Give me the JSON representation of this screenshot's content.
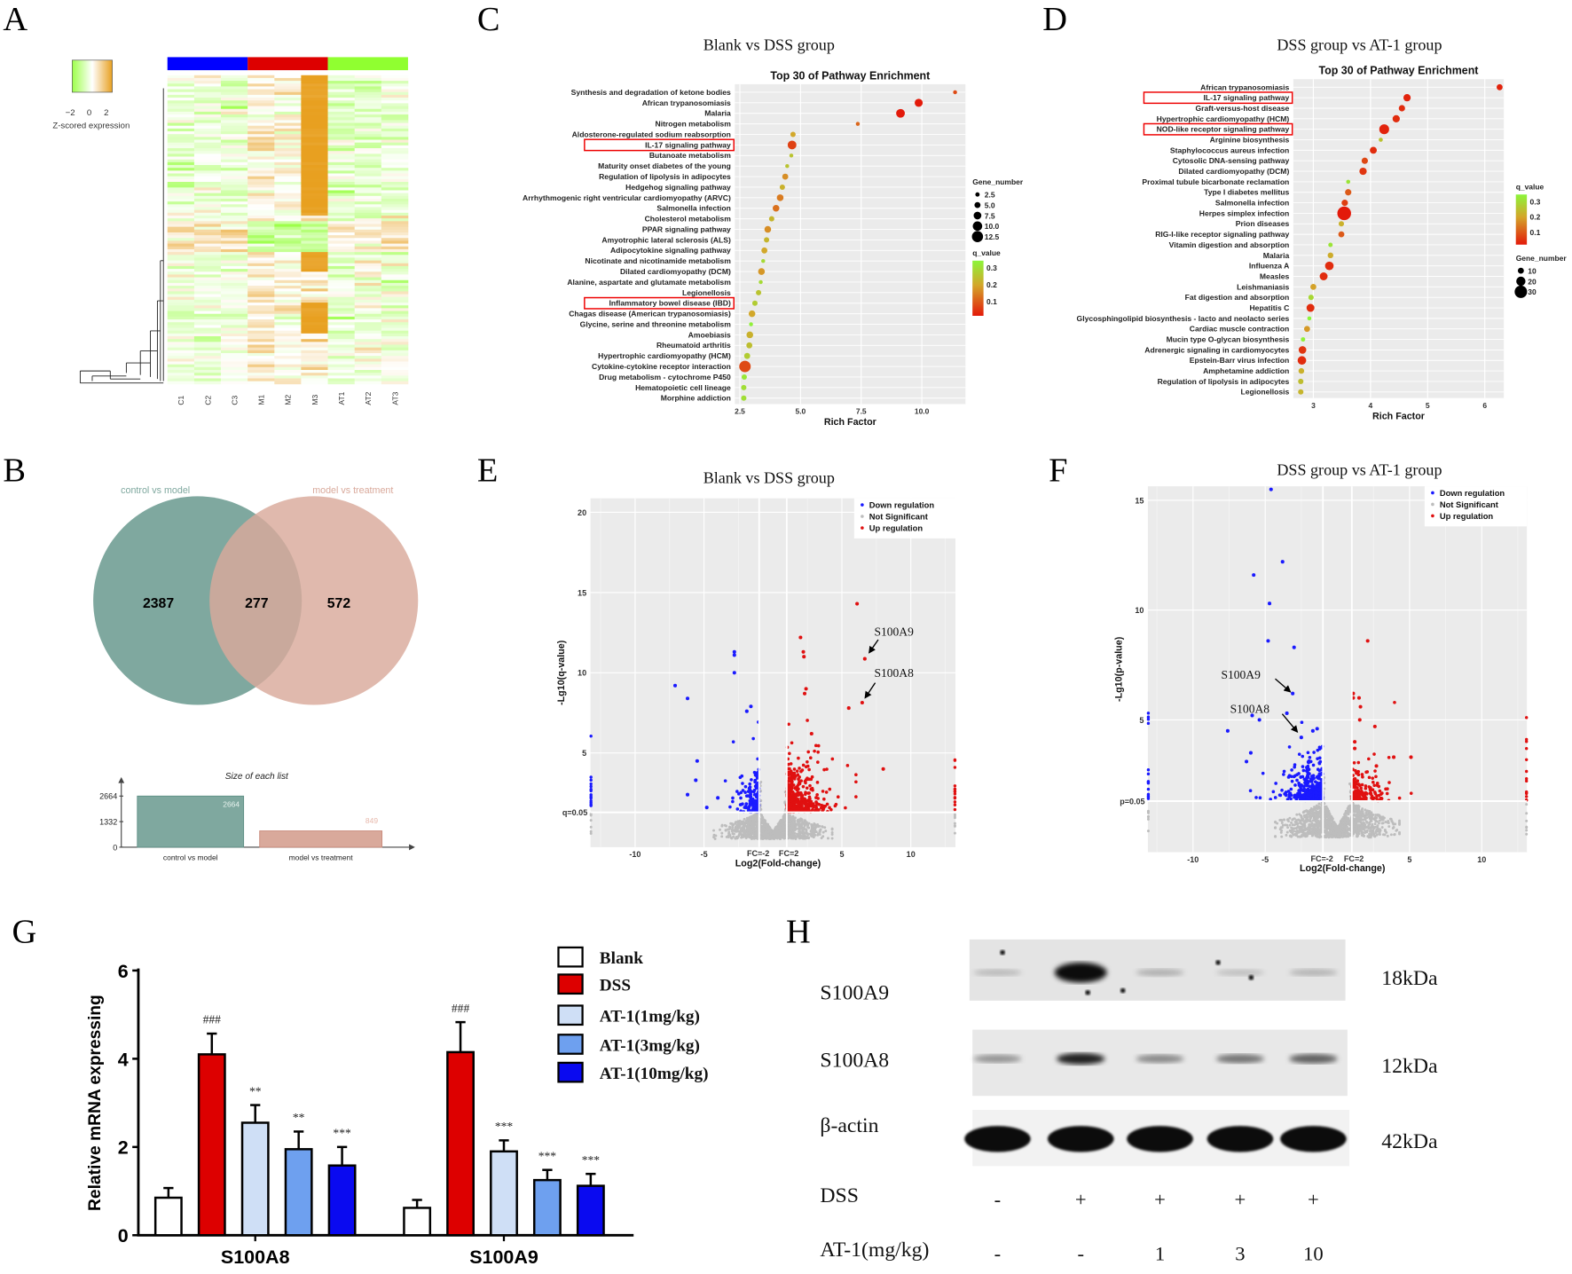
{
  "panel_letters": [
    "A",
    "B",
    "C",
    "D",
    "E",
    "F",
    "G",
    "H"
  ],
  "chart_data": [
    {
      "panel": "A",
      "type": "heatmap",
      "columns": [
        "C1",
        "C2",
        "C3",
        "M1",
        "M2",
        "M3",
        "AT1",
        "AT2",
        "AT3"
      ],
      "group_colors": [
        "#0000ff",
        "#dd0000",
        "#90ff30"
      ],
      "legend_title": "Z-scored expression",
      "legend_ticks": [
        "−2",
        "0",
        "2"
      ],
      "scale_colors": {
        "low": "#9dff4a",
        "mid": "#ffffff",
        "high": "#e8a020"
      }
    },
    {
      "panel": "B",
      "type": "venn",
      "sets": [
        {
          "name": "control vs model",
          "color": "#7fa89f"
        },
        {
          "name": "model vs treatment",
          "color": "#d9a99b"
        }
      ],
      "regions": {
        "left_only": "2387",
        "intersection": "277",
        "right_only": "572"
      }
    },
    {
      "panel": "B",
      "type": "bar",
      "title": "Size of each list",
      "categories": [
        "control vs model",
        "model vs treatment"
      ],
      "values": [
        2664,
        849
      ],
      "value_labels": [
        "2664",
        "849"
      ],
      "yticks": [
        "0",
        "1332",
        "2664"
      ],
      "ylim": [
        0,
        2664
      ]
    },
    {
      "panel": "C",
      "type": "scatter",
      "figure_title": "Blank vs DSS group",
      "title": "Top 30 of Pathway Enrichment",
      "xlabel": "Rich Factor",
      "xticks": [
        2.5,
        5.0,
        7.5,
        10.0
      ],
      "xtick_labels": [
        "2.5",
        "5.0",
        "7.5",
        "10.0"
      ],
      "xlim": [
        2.4,
        11.6
      ],
      "size_legend_title": "Gene_number",
      "size_legend": [
        "2.5",
        "5.0",
        "7.5",
        "10.0",
        "12.5"
      ],
      "color_legend_title": "q_value",
      "color_legend": [
        "0.3",
        "0.2",
        "0.1"
      ],
      "highlighted": [
        "IL-17 signaling pathway",
        "Inflammatory bowel disease (IBD)"
      ],
      "pathways": [
        {
          "name": "Synthesis and degradation of ketone bodies",
          "rich": 11.37,
          "genes": 2,
          "q": 0.06
        },
        {
          "name": "African trypanosomiasis",
          "rich": 9.87,
          "genes": 8,
          "q": 0.01
        },
        {
          "name": "Malaria",
          "rich": 9.12,
          "genes": 9,
          "q": 0.01
        },
        {
          "name": "Nitrogen metabolism",
          "rich": 7.36,
          "genes": 2,
          "q": 0.09
        },
        {
          "name": "Aldosterone-regulated sodium reabsorption",
          "rich": 4.69,
          "genes": 4,
          "q": 0.16
        },
        {
          "name": "IL-17 signaling pathway",
          "rich": 4.65,
          "genes": 9,
          "q": 0.05
        },
        {
          "name": "Butanoate metabolism",
          "rich": 4.62,
          "genes": 2,
          "q": 0.22
        },
        {
          "name": "Maturity onset diabetes of the young",
          "rich": 4.45,
          "genes": 2,
          "q": 0.22
        },
        {
          "name": "Regulation of lipolysis in adipocytes",
          "rich": 4.37,
          "genes": 5,
          "q": 0.13
        },
        {
          "name": "Hedgehog signaling pathway",
          "rich": 4.25,
          "genes": 4,
          "q": 0.18
        },
        {
          "name": "Arrhythmogenic right ventricular cardiomyopathy (ARVC)",
          "rich": 4.16,
          "genes": 6,
          "q": 0.11
        },
        {
          "name": "Salmonella infection",
          "rich": 3.99,
          "genes": 6,
          "q": 0.1
        },
        {
          "name": "Cholesterol metabolism",
          "rich": 3.81,
          "genes": 4,
          "q": 0.19
        },
        {
          "name": "PPAR signaling pathway",
          "rich": 3.65,
          "genes": 6,
          "q": 0.13
        },
        {
          "name": "Amyotrophic lateral sclerosis (ALS)",
          "rich": 3.6,
          "genes": 4,
          "q": 0.19
        },
        {
          "name": "Adipocytokine signaling pathway",
          "rich": 3.51,
          "genes": 5,
          "q": 0.16
        },
        {
          "name": "Nicotinate and nicotinamide metabolism",
          "rich": 3.46,
          "genes": 2,
          "q": 0.27
        },
        {
          "name": "Dilated cardiomyopathy (DCM)",
          "rich": 3.39,
          "genes": 6,
          "q": 0.14
        },
        {
          "name": "Alanine, aspartate and glutamate metabolism",
          "rich": 3.36,
          "genes": 2,
          "q": 0.27
        },
        {
          "name": "Legionellosis",
          "rich": 3.27,
          "genes": 4,
          "q": 0.22
        },
        {
          "name": "Inflammatory bowel disease (IBD)",
          "rich": 3.12,
          "genes": 4,
          "q": 0.24
        },
        {
          "name": "Chagas disease (American trypanosomiasis)",
          "rich": 3.0,
          "genes": 6,
          "q": 0.16
        },
        {
          "name": "Glycine, serine and threonine metabolism",
          "rich": 2.96,
          "genes": 2,
          "q": 0.32
        },
        {
          "name": "Amoebiasis",
          "rich": 2.91,
          "genes": 6,
          "q": 0.18
        },
        {
          "name": "Rheumatoid arthritis",
          "rich": 2.89,
          "genes": 5,
          "q": 0.21
        },
        {
          "name": "Hypertrophic cardiomyopathy (HCM)",
          "rich": 2.8,
          "genes": 5,
          "q": 0.24
        },
        {
          "name": "Cytokine-cytokine receptor interaction",
          "rich": 2.71,
          "genes": 13,
          "q": 0.06
        },
        {
          "name": "Drug metabolism - cytochrome P450",
          "rich": 2.68,
          "genes": 4,
          "q": 0.3
        },
        {
          "name": "Hematopoietic cell lineage",
          "rich": 2.66,
          "genes": 4,
          "q": 0.28
        },
        {
          "name": "Morphine addiction",
          "rich": 2.66,
          "genes": 4,
          "q": 0.28
        }
      ]
    },
    {
      "panel": "D",
      "type": "scatter",
      "figure_title": "DSS group vs AT-1 group",
      "title": "Top 30 of Pathway Enrichment",
      "xlabel": "Rich Factor",
      "xticks": [
        3,
        4,
        5,
        6
      ],
      "xtick_labels": [
        "3",
        "4",
        "5",
        "6"
      ],
      "xlim": [
        2.65,
        6.4
      ],
      "size_legend_title": "Gene_number",
      "size_legend": [
        "10",
        "20",
        "30"
      ],
      "color_legend_title": "q_value",
      "color_legend": [
        "0.3",
        "0.2",
        "0.1"
      ],
      "highlighted": [
        "IL-17 signaling pathway",
        "NOD-like receptor signaling pathway"
      ],
      "pathways": [
        {
          "name": "African trypanosomiasis",
          "rich": 6.26,
          "genes": 10,
          "q": 0.02
        },
        {
          "name": "IL-17 signaling pathway",
          "rich": 4.64,
          "genes": 14,
          "q": 0.02
        },
        {
          "name": "Graft-versus-host disease",
          "rich": 4.55,
          "genes": 11,
          "q": 0.03
        },
        {
          "name": "Hypertrophic cardiomyopathy (HCM)",
          "rich": 4.45,
          "genes": 14,
          "q": 0.03
        },
        {
          "name": "NOD-like receptor signaling pathway",
          "rich": 4.24,
          "genes": 22,
          "q": 0.02
        },
        {
          "name": "Arginine biosynthesis",
          "rich": 4.18,
          "genes": 4,
          "q": 0.23
        },
        {
          "name": "Staphylococcus aureus infection",
          "rich": 4.05,
          "genes": 13,
          "q": 0.03
        },
        {
          "name": "Cytosolic DNA-sensing pathway",
          "rich": 3.9,
          "genes": 11,
          "q": 0.06
        },
        {
          "name": "Dilated cardiomyopathy (DCM)",
          "rich": 3.87,
          "genes": 14,
          "q": 0.04
        },
        {
          "name": "Proximal tubule bicarbonate reclamation",
          "rich": 3.61,
          "genes": 4,
          "q": 0.31
        },
        {
          "name": "Type I diabetes mellitus",
          "rich": 3.61,
          "genes": 11,
          "q": 0.08
        },
        {
          "name": "Salmonella infection",
          "rich": 3.55,
          "genes": 11,
          "q": 0.05
        },
        {
          "name": "Herpes simplex infection",
          "rich": 3.54,
          "genes": 34,
          "q": 0.01
        },
        {
          "name": "Prion diseases",
          "rich": 3.49,
          "genes": 8,
          "q": 0.19
        },
        {
          "name": "RIG-I-like receptor signaling pathway",
          "rich": 3.49,
          "genes": 10,
          "q": 0.08
        },
        {
          "name": "Vitamin digestion and absorption",
          "rich": 3.3,
          "genes": 5,
          "q": 0.31
        },
        {
          "name": "Malaria",
          "rich": 3.3,
          "genes": 9,
          "q": 0.18
        },
        {
          "name": "Influenza A",
          "rich": 3.28,
          "genes": 18,
          "q": 0.03
        },
        {
          "name": "Measles",
          "rich": 3.18,
          "genes": 16,
          "q": 0.03
        },
        {
          "name": "Leishmaniasis",
          "rich": 3.0,
          "genes": 10,
          "q": 0.16
        },
        {
          "name": "Fat digestion and absorption",
          "rich": 2.96,
          "genes": 8,
          "q": 0.28
        },
        {
          "name": "Hepatitis C",
          "rich": 2.95,
          "genes": 16,
          "q": 0.03
        },
        {
          "name": "Glycosphingolipid biosynthesis - lacto and neolacto series",
          "rich": 2.93,
          "genes": 4,
          "q": 0.35
        },
        {
          "name": "Cardiac muscle contraction",
          "rich": 2.89,
          "genes": 10,
          "q": 0.15
        },
        {
          "name": "Mucin type O-glycan biosynthesis",
          "rich": 2.82,
          "genes": 5,
          "q": 0.34
        },
        {
          "name": "Adrenergic signaling in cardiomyocytes",
          "rich": 2.81,
          "genes": 15,
          "q": 0.04
        },
        {
          "name": "Epstein-Barr virus infection",
          "rich": 2.8,
          "genes": 18,
          "q": 0.03
        },
        {
          "name": "Amphetamine addiction",
          "rich": 2.79,
          "genes": 9,
          "q": 0.19
        },
        {
          "name": "Regulation of lipolysis in adipocytes",
          "rich": 2.78,
          "genes": 8,
          "q": 0.22
        },
        {
          "name": "Legionellosis",
          "rich": 2.78,
          "genes": 8,
          "q": 0.2
        }
      ]
    },
    {
      "panel": "E",
      "type": "scatter",
      "title": "Blank vs DSS group",
      "xlabel": "Log2(Fold-change)",
      "ylabel": "-Lg10(q-value)",
      "xticks": [
        "-10",
        "-5",
        "5",
        "10"
      ],
      "yticks": [
        "5",
        "10",
        "15",
        "20"
      ],
      "threshold_label": "q=0.05",
      "fc_labels": [
        "FC=-2",
        "FC=2"
      ],
      "legend": [
        {
          "label": "Down regulation",
          "color": "#1a1aff"
        },
        {
          "label": "Not Significant",
          "color": "#bdbdbd"
        },
        {
          "label": "Up regulation",
          "color": "#e01010"
        }
      ],
      "annotated_genes": [
        {
          "name": "S100A9",
          "log2fc": 6.66,
          "neglog10": 10.87
        },
        {
          "name": "S100A8",
          "log2fc": 6.47,
          "neglog10": 8.14
        }
      ],
      "outliers_up": [
        [
          6.1,
          14.3
        ],
        [
          2.0,
          12.2
        ],
        [
          2.2,
          11.3
        ],
        [
          2.25,
          11.0
        ],
        [
          5.5,
          7.8
        ],
        [
          8.0,
          4.0
        ],
        [
          2.4,
          9.0
        ],
        [
          2.3,
          8.7
        ],
        [
          2.8,
          6.2
        ]
      ],
      "outliers_down": [
        [
          -2.8,
          11.3
        ],
        [
          -2.8,
          11.1
        ],
        [
          -2.8,
          10.0
        ],
        [
          -7.1,
          9.2
        ],
        [
          -6.2,
          8.4
        ],
        [
          -1.6,
          7.9
        ],
        [
          -1.9,
          7.6
        ],
        [
          -5.5,
          4.5
        ],
        [
          -5.6,
          3.3
        ],
        [
          -6.2,
          2.4
        ],
        [
          -4.0,
          2.2
        ],
        [
          -4.8,
          1.6
        ]
      ]
    },
    {
      "panel": "F",
      "type": "scatter",
      "title": "DSS group vs AT-1 group",
      "xlabel": "Log2(Fold-change)",
      "ylabel": "-Lg10(p-value)",
      "xticks": [
        "-10",
        "-5",
        "5",
        "10"
      ],
      "yticks": [
        "5",
        "10",
        "15"
      ],
      "threshold_label": "p=0.05",
      "fc_labels": [
        "FC=-2",
        "FC=2"
      ],
      "legend": [
        {
          "label": "Down regulation",
          "color": "#1a1aff"
        },
        {
          "label": "Not Significant",
          "color": "#bdbdbd"
        },
        {
          "label": "Up regulation",
          "color": "#e01010"
        }
      ],
      "annotated_genes": [
        {
          "name": "S100A9",
          "log2fc": -3.1,
          "neglog10": 6.2
        },
        {
          "name": "S100A8",
          "log2fc": -2.5,
          "neglog10": 4.2
        }
      ],
      "outliers_up": [
        [
          2.1,
          8.6
        ],
        [
          1.1,
          6.2
        ],
        [
          1.1,
          6.0
        ],
        [
          1.5,
          6.0
        ],
        [
          1.6,
          5.6
        ],
        [
          1.55,
          5.0
        ],
        [
          2.6,
          4.7
        ],
        [
          3.9,
          3.3
        ],
        [
          5.1,
          3.3
        ],
        [
          1.2,
          4.0
        ],
        [
          1.2,
          3.7
        ],
        [
          2.7,
          2.9
        ]
      ],
      "outliers_down": [
        [
          -4.6,
          15.5
        ],
        [
          -3.8,
          12.2
        ],
        [
          -5.8,
          11.6
        ],
        [
          -4.7,
          10.3
        ],
        [
          -4.8,
          8.6
        ],
        [
          -3.0,
          8.3
        ],
        [
          -3.5,
          5.3
        ],
        [
          -5.9,
          5.2
        ],
        [
          -5.4,
          5.0
        ],
        [
          -7.6,
          4.5
        ],
        [
          -1.7,
          4.5
        ],
        [
          -1.4,
          4.6
        ],
        [
          -6.0,
          3.5
        ],
        [
          -6.3,
          3.1
        ]
      ]
    },
    {
      "panel": "G",
      "type": "bar",
      "ylabel": "Relative mRNA expressing",
      "ylim": [
        0,
        6
      ],
      "yticks": [
        "0",
        "2",
        "4",
        "6"
      ],
      "categories": [
        "S100A8",
        "S100A9"
      ],
      "series": [
        {
          "name": "Blank",
          "color": "#ffffff",
          "values": [
            0.85,
            0.62
          ],
          "errors": [
            0.22,
            0.18
          ],
          "marks": [
            "",
            ""
          ]
        },
        {
          "name": "DSS",
          "color": "#dd0000",
          "values": [
            4.1,
            4.15
          ],
          "errors": [
            0.47,
            0.68
          ],
          "marks": [
            "###",
            "###"
          ]
        },
        {
          "name": "AT-1(1mg/kg)",
          "color": "#cfdff6",
          "values": [
            2.55,
            1.9
          ],
          "errors": [
            0.4,
            0.25
          ],
          "marks": [
            "**",
            "***"
          ]
        },
        {
          "name": "AT-1(3mg/kg)",
          "color": "#6ea0ef",
          "values": [
            1.95,
            1.25
          ],
          "errors": [
            0.4,
            0.23
          ],
          "marks": [
            "**",
            "***"
          ]
        },
        {
          "name": "AT-1(10mg/kg)",
          "color": "#0a0af0",
          "values": [
            1.58,
            1.12
          ],
          "errors": [
            0.42,
            0.27
          ],
          "marks": [
            "***",
            "***"
          ]
        }
      ]
    }
  ],
  "western_blot": {
    "rows": [
      {
        "protein": "S100A9",
        "size": "18kDa",
        "intensity": [
          0.15,
          1.0,
          0.2,
          0.12,
          0.18
        ]
      },
      {
        "protein": "S100A8",
        "size": "12kDa",
        "intensity": [
          0.35,
          0.9,
          0.4,
          0.5,
          0.6
        ]
      },
      {
        "protein": "β-actin",
        "size": "42kDa",
        "intensity": [
          1,
          1,
          1,
          1,
          1
        ]
      }
    ],
    "conditions": [
      {
        "label": "DSS",
        "values": [
          "-",
          "+",
          "+",
          "+",
          "+"
        ]
      },
      {
        "label": "AT-1(mg/kg)",
        "values": [
          "-",
          "-",
          "1",
          "3",
          "10"
        ]
      }
    ]
  }
}
